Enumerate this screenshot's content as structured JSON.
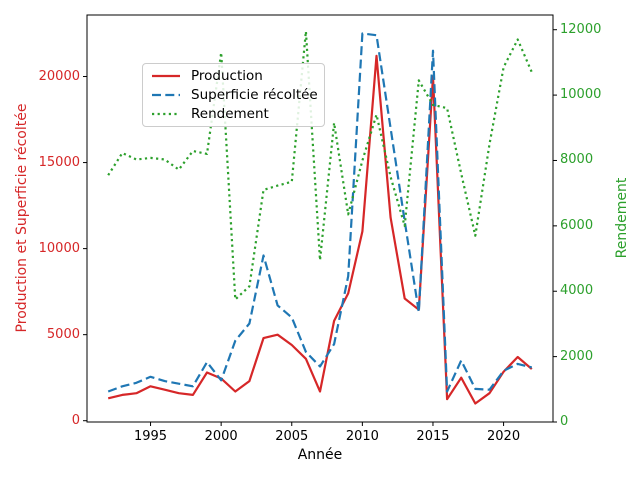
{
  "figure": {
    "xlabel": "Année",
    "ylabel_left": "Production et Superficie récoltée",
    "ylabel_right": "Rendement",
    "legend": [
      "Production",
      "Superficie récoltée",
      "Rendement"
    ],
    "colors": {
      "production": "#d62728",
      "superficie": "#1f77b4",
      "rendement": "#2ca02c",
      "axis": "#000000",
      "legend_border": "#cccccc"
    }
  },
  "chart_data": {
    "type": "line",
    "title": "",
    "xlabel": "Année",
    "ylabel_left": "Production et Superficie récoltée",
    "ylabel_right": "Rendement",
    "grid": false,
    "legend_position": "upper-left-inset",
    "x": [
      1992,
      1993,
      1994,
      1995,
      1996,
      1997,
      1998,
      1999,
      2000,
      2001,
      2002,
      2003,
      2004,
      2005,
      2006,
      2007,
      2008,
      2009,
      2010,
      2011,
      2012,
      2013,
      2014,
      2015,
      2016,
      2017,
      2018,
      2019,
      2020,
      2021,
      2022
    ],
    "series": [
      {
        "name": "Production",
        "axis": "left",
        "style": "solid",
        "color": "#d62728",
        "values": [
          1300,
          1500,
          1600,
          2000,
          1800,
          1600,
          1500,
          2800,
          2450,
          1700,
          2300,
          4800,
          5000,
          4400,
          3600,
          1700,
          5800,
          7400,
          11000,
          21200,
          11800,
          7100,
          6450,
          20000,
          1250,
          2500,
          1000,
          1600,
          2850,
          3700,
          3000
        ]
      },
      {
        "name": "Superficie récoltée",
        "axis": "left",
        "style": "dashed",
        "color": "#1f77b4",
        "values": [
          1700,
          2000,
          2200,
          2550,
          2300,
          2150,
          2000,
          3400,
          2350,
          4650,
          5650,
          9600,
          6700,
          6000,
          4000,
          3150,
          4450,
          8400,
          22500,
          22400,
          17000,
          11600,
          6300,
          21500,
          1700,
          3500,
          1850,
          1800,
          2900,
          3300,
          3100
        ]
      },
      {
        "name": "Rendement",
        "axis": "right",
        "style": "dotted",
        "color": "#2ca02c",
        "values": [
          7550,
          8230,
          8030,
          8080,
          8030,
          7720,
          8290,
          8200,
          11300,
          3750,
          4150,
          7100,
          7230,
          7350,
          11950,
          4950,
          9150,
          6350,
          8000,
          9400,
          7500,
          6000,
          10450,
          9700,
          9600,
          7600,
          5700,
          8500,
          10850,
          11700,
          10700
        ]
      }
    ],
    "x_ticks": [
      1995,
      2000,
      2005,
      2010,
      2015,
      2020
    ],
    "left_ticks": [
      0,
      5000,
      10000,
      15000,
      20000
    ],
    "right_ticks": [
      0,
      2000,
      4000,
      6000,
      8000,
      10000,
      12000
    ],
    "x_range": [
      1990.5,
      2023.5
    ],
    "left_range": [
      -75,
      23575
    ],
    "right_range": [
      0,
      12450
    ]
  }
}
